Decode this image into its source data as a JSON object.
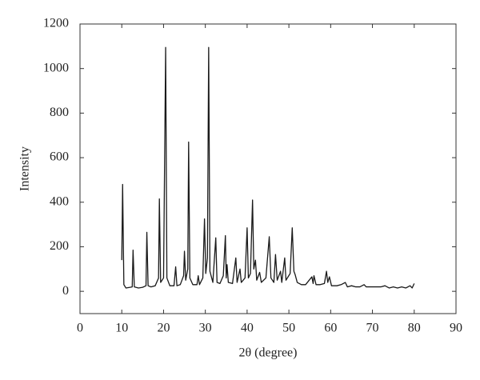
{
  "chart_data": {
    "type": "line",
    "xlabel": "2θ (degree)",
    "ylabel": "Intensity",
    "xlim": [
      0,
      90
    ],
    "xticks": [
      0,
      10,
      20,
      30,
      40,
      50,
      60,
      70,
      80,
      90
    ],
    "ylim": [
      -100,
      1200
    ],
    "yticks": [
      0,
      200,
      400,
      600,
      800,
      1000,
      1200
    ],
    "x": [
      10,
      10.2,
      10.5,
      11,
      12,
      12.5,
      12.7,
      13,
      14,
      15,
      15.8,
      16,
      16.3,
      17,
      18,
      18.8,
      19,
      19.3,
      20,
      20.5,
      20.8,
      21.5,
      22.5,
      22.9,
      23.2,
      24,
      24.8,
      25,
      25.3,
      25.8,
      26,
      26.3,
      27,
      28,
      28.3,
      28.6,
      29.4,
      29.8,
      30.1,
      30.5,
      30.8,
      31.1,
      31.8,
      32.5,
      32.8,
      33.5,
      34.3,
      34.8,
      35,
      35.2,
      35.5,
      36.5,
      37.3,
      37.6,
      38.3,
      38.6,
      39.5,
      40,
      40.3,
      40.8,
      41.3,
      41.6,
      42,
      42.3,
      43,
      43.4,
      44.5,
      45.3,
      45.7,
      46.4,
      46.8,
      47.2,
      48,
      48.3,
      49,
      49.3,
      50.3,
      50.8,
      51.2,
      51.5,
      52,
      53,
      54,
      55.5,
      55.8,
      56,
      56.5,
      57.5,
      58.5,
      59,
      59.3,
      59.7,
      60.2,
      61.5,
      62.5,
      63.5,
      64,
      65,
      66,
      67,
      68,
      68.5,
      70,
      72,
      73,
      74,
      75,
      76,
      77,
      78,
      79,
      79.5,
      80
    ],
    "series": [
      {
        "color": "#1a1a1a",
        "values": [
          140,
          480,
          30,
          15,
          18,
          20,
          185,
          20,
          15,
          18,
          25,
          265,
          25,
          20,
          25,
          60,
          415,
          40,
          60,
          1095,
          60,
          25,
          25,
          110,
          25,
          30,
          70,
          180,
          50,
          100,
          670,
          60,
          30,
          30,
          70,
          30,
          60,
          325,
          80,
          150,
          1095,
          90,
          40,
          240,
          40,
          35,
          70,
          250,
          60,
          120,
          40,
          35,
          150,
          40,
          100,
          40,
          60,
          285,
          60,
          80,
          410,
          100,
          140,
          50,
          85,
          40,
          60,
          245,
          60,
          40,
          165,
          50,
          90,
          40,
          150,
          50,
          80,
          285,
          90,
          75,
          40,
          30,
          30,
          65,
          35,
          70,
          30,
          30,
          35,
          90,
          40,
          65,
          25,
          25,
          30,
          40,
          20,
          25,
          20,
          20,
          30,
          20,
          20,
          20,
          25,
          15,
          20,
          15,
          20,
          15,
          25,
          15,
          35
        ]
      }
    ]
  }
}
